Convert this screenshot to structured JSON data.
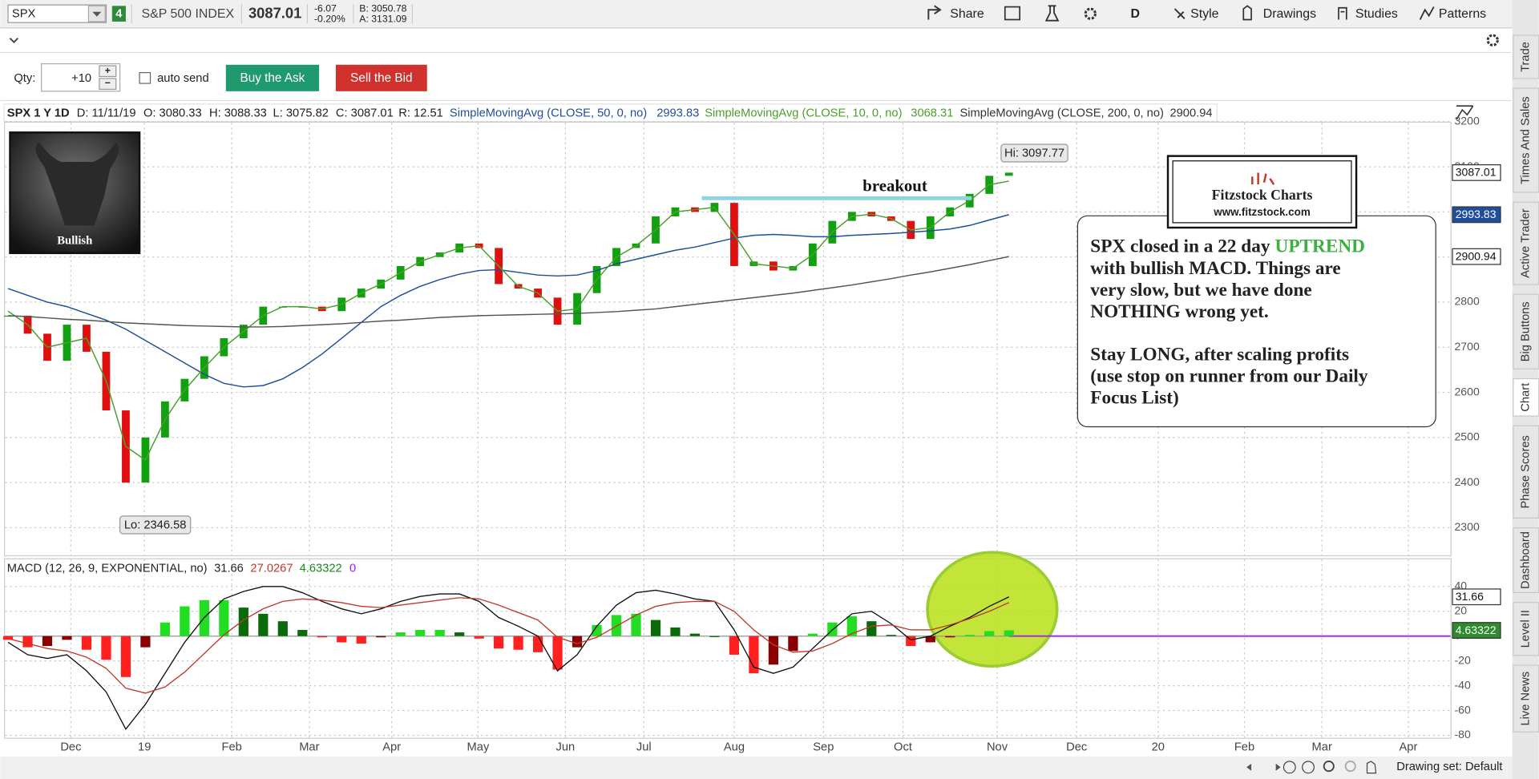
{
  "toolbar": {
    "symbol": "SPX",
    "link_group": "4",
    "description": "S&P 500 INDEX",
    "last": "3087.01",
    "change": "-6.07",
    "change_pct": "-0.20%",
    "bid": "B: 3050.78",
    "ask": "A: 3131.09",
    "buttons": [
      "Share",
      "D",
      "Style",
      "Drawings",
      "Studies",
      "Patterns"
    ]
  },
  "order_bar": {
    "qty_label": "Qty:",
    "qty": "+10",
    "auto_send": "auto send",
    "buy": "Buy the Ask",
    "sell": "Sell the Bid"
  },
  "study_header": {
    "symbol": "SPX 1 Y 1D",
    "date": "D: 11/11/19",
    "open": "O: 3080.33",
    "high": "H: 3088.33",
    "low": "L: 3075.82",
    "close": "C: 3087.01",
    "range": "R: 12.51"
  },
  "price_chart": {
    "ylim": [
      2241,
      3200
    ],
    "yticks": [
      2300,
      2400,
      2500,
      2600,
      2700,
      2800,
      2900,
      3000,
      3100,
      3200
    ],
    "months": [
      "Dec",
      "19",
      "Feb",
      "Mar",
      "Apr",
      "May",
      "Jun",
      "Jul",
      "Aug",
      "Sep",
      "Oct",
      "Nov",
      "Dec",
      "20",
      "Feb",
      "Mar",
      "Apr"
    ],
    "closes": [
      2770,
      2730,
      2670,
      2750,
      2690,
      2560,
      2400,
      2500,
      2580,
      2630,
      2680,
      2720,
      2750,
      2790,
      2790,
      2790,
      2780,
      2810,
      2830,
      2850,
      2880,
      2900,
      2910,
      2930,
      2920,
      2840,
      2830,
      2810,
      2750,
      2820,
      2880,
      2920,
      2930,
      2990,
      3010,
      3000,
      3020,
      2880,
      2890,
      2870,
      2880,
      2930,
      2980,
      3000,
      2990,
      2980,
      2940,
      2990,
      3010,
      3040,
      3080,
      3087.01
    ],
    "series": [
      {
        "name": "SimpleMovingAvg (CLOSE, 50, 0, no)",
        "color": "#1f4e9c",
        "values": [
          2830,
          2815,
          2800,
          2790,
          2775,
          2760,
          2740,
          2715,
          2690,
          2665,
          2640,
          2620,
          2612,
          2615,
          2630,
          2655,
          2685,
          2720,
          2755,
          2790,
          2815,
          2835,
          2850,
          2862,
          2870,
          2872,
          2866,
          2860,
          2858,
          2860,
          2870,
          2885,
          2895,
          2905,
          2915,
          2922,
          2932,
          2942,
          2948,
          2950,
          2948,
          2945,
          2945,
          2948,
          2950,
          2952,
          2955,
          2958,
          2962,
          2970,
          2982,
          2993.83
        ]
      },
      {
        "name": "SimpleMovingAvg (CLOSE, 10, 0, no)",
        "color": "#4aa02c",
        "values": [
          2780,
          2750,
          2700,
          2710,
          2720,
          2625,
          2480,
          2450,
          2540,
          2605,
          2655,
          2700,
          2735,
          2770,
          2790,
          2790,
          2785,
          2795,
          2820,
          2840,
          2865,
          2890,
          2905,
          2920,
          2925,
          2880,
          2835,
          2820,
          2780,
          2785,
          2850,
          2900,
          2925,
          2960,
          3000,
          3005,
          3010,
          2950,
          2885,
          2880,
          2875,
          2905,
          2955,
          2990,
          2995,
          2985,
          2960,
          2965,
          3000,
          3025,
          3060,
          3068.31
        ]
      },
      {
        "name": "SimpleMovingAvg (CLOSE, 200, 0, no)",
        "color": "#555555",
        "values": [
          2770,
          2768,
          2765,
          2762,
          2760,
          2757,
          2754,
          2752,
          2750,
          2748,
          2747,
          2746,
          2745,
          2745,
          2746,
          2748,
          2750,
          2752,
          2755,
          2758,
          2760,
          2763,
          2766,
          2768,
          2770,
          2771,
          2772,
          2773,
          2774,
          2775,
          2777,
          2779,
          2782,
          2785,
          2790,
          2795,
          2800,
          2805,
          2810,
          2815,
          2820,
          2826,
          2832,
          2838,
          2845,
          2852,
          2860,
          2867,
          2875,
          2883,
          2892,
          2900.94
        ]
      }
    ],
    "hi_label": "Hi: 3097.77",
    "lo_label": "Lo: 2346.58"
  },
  "macd": {
    "name": "MACD (12, 26, 9, EXPONENTIAL, no)",
    "ylim": [
      -82,
      62
    ],
    "yticks": [
      -80,
      -60,
      -40,
      -20,
      0,
      20,
      40
    ],
    "zero": 0,
    "value": [
      -5,
      -15,
      -18,
      -15,
      -28,
      -45,
      -75,
      -55,
      -30,
      -5,
      15,
      30,
      36,
      40,
      40,
      35,
      28,
      22,
      18,
      22,
      28,
      32,
      34,
      34,
      28,
      15,
      8,
      0,
      -28,
      -15,
      8,
      25,
      35,
      37,
      34,
      30,
      28,
      5,
      -25,
      -30,
      -25,
      -10,
      5,
      18,
      20,
      10,
      -3,
      0,
      8,
      15,
      24,
      31.66
    ],
    "avg": [
      -2,
      -6,
      -10,
      -12,
      -17,
      -26,
      -42,
      -46,
      -41,
      -29,
      -14,
      1,
      13,
      22,
      28,
      30,
      29,
      27,
      24,
      23,
      25,
      27,
      29,
      31,
      30,
      25,
      19,
      13,
      -1,
      -6,
      -1,
      8,
      17,
      24,
      27,
      28,
      28,
      20,
      5,
      -7,
      -13,
      -12,
      -6,
      2,
      8,
      9,
      5,
      5,
      9,
      14,
      20,
      27.0267
    ],
    "diff": [
      -3,
      -9,
      -8,
      -3,
      -11,
      -19,
      -33,
      -9,
      11,
      24,
      29,
      29,
      23,
      18,
      12,
      5,
      -1,
      -5,
      -6,
      -1,
      3,
      5,
      5,
      3,
      -2,
      -10,
      -11,
      -13,
      -27,
      -9,
      9,
      17,
      18,
      13,
      7,
      2,
      0,
      -15,
      -30,
      -23,
      -12,
      2,
      11,
      16,
      12,
      1,
      -8,
      -5,
      -1,
      1,
      4,
      4.63322
    ]
  },
  "annotations": {
    "bull": "Bullish",
    "breakout": "breakout",
    "logo_title": "Fitzstock Charts",
    "logo_url": "www.fitzstock.com",
    "note": {
      "line1": "SPX closed in a 22 day",
      "highlight": "UPTREND",
      "lines": [
        "with bullish MACD.   Things are",
        "very slow, but we have done",
        "NOTHING wrong yet.",
        "Stay LONG, after scaling profits",
        "(use stop on runner from our Daily",
        "Focus List)"
      ]
    }
  },
  "side_tabs": [
    "Trade",
    "Times And Sales",
    "Active Trader",
    "Big Buttons",
    "Chart",
    "Phase Scores",
    "Dashboard",
    "Level II",
    "Live News"
  ],
  "bottom_bar": {
    "drawing_set": "Drawing set: Default"
  }
}
